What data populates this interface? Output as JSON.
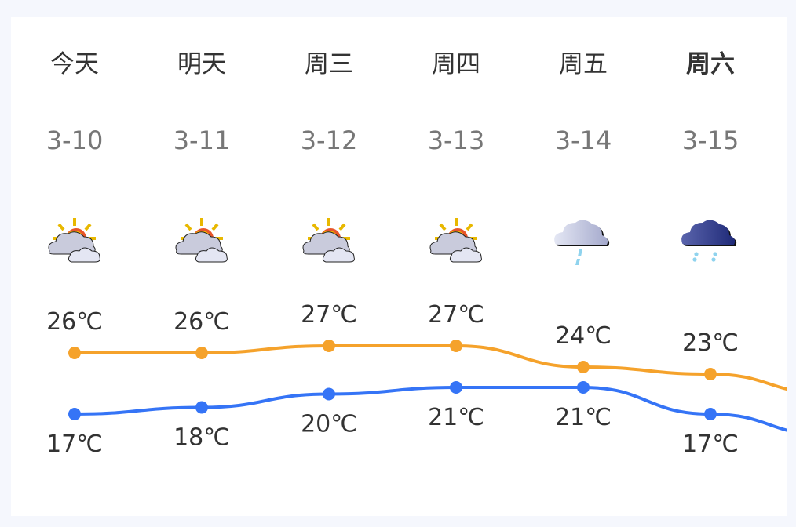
{
  "days": [
    {
      "label": "今天",
      "date": "3-10",
      "icon": "partly-cloudy-icon",
      "high": "26℃",
      "low": "17℃",
      "bold": false
    },
    {
      "label": "明天",
      "date": "3-11",
      "icon": "partly-cloudy-icon",
      "high": "26℃",
      "low": "18℃",
      "bold": false
    },
    {
      "label": "周三",
      "date": "3-12",
      "icon": "partly-cloudy-icon",
      "high": "27℃",
      "low": "20℃",
      "bold": false
    },
    {
      "label": "周四",
      "date": "3-13",
      "icon": "partly-cloudy-icon",
      "high": "27℃",
      "low": "21℃",
      "bold": false
    },
    {
      "label": "周五",
      "date": "3-14",
      "icon": "light-rain-icon",
      "high": "24℃",
      "low": "21℃",
      "bold": false
    },
    {
      "label": "周六",
      "date": "3-15",
      "icon": "showers-icon",
      "high": "23℃",
      "low": "17℃",
      "bold": true
    }
  ],
  "chart_data": {
    "type": "line",
    "categories": [
      "3-10",
      "3-11",
      "3-12",
      "3-13",
      "3-14",
      "3-15"
    ],
    "series": [
      {
        "values": [
          26,
          26,
          27,
          27,
          24,
          23
        ],
        "color": "#f5a22b"
      },
      {
        "values": [
          17,
          18,
          20,
          21,
          21,
          17
        ],
        "color": "#3574f6"
      }
    ],
    "grid": false
  }
}
